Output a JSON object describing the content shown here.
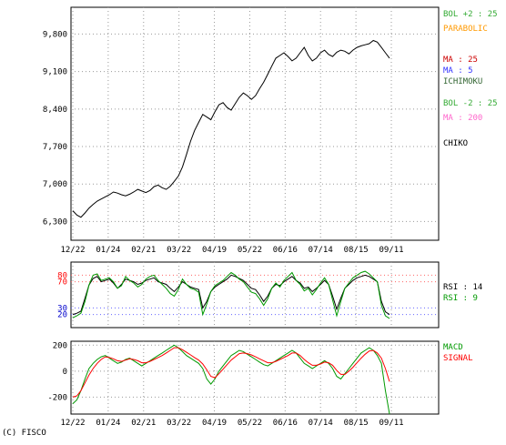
{
  "copyright": "(C) FISCO",
  "colors": {
    "close": "#000000",
    "candle_up": "#ff0000",
    "candle_down": "#000099",
    "bol_upper": "#33aa33",
    "bol_lower": "#33aa33",
    "parabolic": "#ff9900",
    "ma25": "#cc0000",
    "ma5": "#3333ff",
    "ma200": "#ff66cc",
    "ichimoku": "#999999",
    "chiko": "#000000",
    "rsi14": "#000000",
    "rsi9": "#009900",
    "macd": "#009900",
    "signal": "#ff0000",
    "grid": "#999999",
    "ref_high": "#ff6666",
    "ref_low": "#6666ff"
  },
  "chart_data": [
    {
      "type": "line",
      "panel": "price",
      "x_labels": [
        "12/22",
        "01/24",
        "02/21",
        "03/22",
        "04/19",
        "05/22",
        "06/16",
        "07/14",
        "08/15",
        "09/11"
      ],
      "y_ticks": [
        "9,800",
        "9,100",
        "8,400",
        "7,700",
        "7,000",
        "6,300"
      ],
      "y_tick_values": [
        9800,
        9100,
        8400,
        7700,
        7000,
        6300
      ],
      "ylim": [
        5950,
        10300
      ],
      "legend": [
        {
          "label": "BOL +2 : 25",
          "color": "#33aa33"
        },
        {
          "label": "PARABOLIC",
          "color": "#ff9900"
        },
        {
          "label": "MA : 25",
          "color": "#cc0000"
        },
        {
          "label": "MA : 5",
          "color": "#3333ff"
        },
        {
          "label": "ICHIMOKU",
          "color": "#336633"
        },
        {
          "label": "BOL -2 : 25",
          "color": "#33aa33"
        },
        {
          "label": "MA : 200",
          "color": "#ff66cc"
        },
        {
          "label": "CHIKO",
          "color": "#000000"
        }
      ],
      "series": [
        {
          "name": "Close",
          "values": [
            6500,
            6420,
            6380,
            6460,
            6550,
            6620,
            6680,
            6720,
            6760,
            6800,
            6850,
            6830,
            6800,
            6780,
            6810,
            6850,
            6900,
            6870,
            6840,
            6880,
            6950,
            6980,
            6930,
            6900,
            6960,
            7050,
            7150,
            7320,
            7550,
            7800,
            8000,
            8150,
            8300,
            8250,
            8200,
            8350,
            8480,
            8520,
            8430,
            8380,
            8500,
            8620,
            8700,
            8650,
            8580,
            8650,
            8780,
            8900,
            9050,
            9200,
            9350,
            9400,
            9450,
            9380,
            9300,
            9350,
            9450,
            9550,
            9400,
            9300,
            9350,
            9450,
            9500,
            9420,
            9380,
            9460,
            9500,
            9480,
            9430,
            9500,
            9550,
            9580,
            9600,
            9620,
            9680,
            9650,
            9550,
            9450,
            9350
          ]
        }
      ]
    },
    {
      "type": "line",
      "panel": "rsi",
      "y_ticks": [
        "80",
        "70",
        "30",
        "20"
      ],
      "y_tick_values": [
        80,
        70,
        30,
        20
      ],
      "ylim": [
        0,
        100
      ],
      "legend": [
        {
          "label": "RSI : 14",
          "color": "#000000"
        },
        {
          "label": "RSI : 9",
          "color": "#009900"
        }
      ],
      "series": [
        {
          "name": "RSI 14",
          "values": [
            20,
            22,
            25,
            45,
            65,
            75,
            78,
            70,
            72,
            74,
            68,
            60,
            66,
            74,
            72,
            70,
            66,
            68,
            72,
            74,
            76,
            70,
            68,
            66,
            60,
            55,
            62,
            70,
            66,
            62,
            60,
            58,
            30,
            40,
            55,
            62,
            66,
            70,
            74,
            80,
            78,
            75,
            72,
            66,
            60,
            58,
            50,
            40,
            48,
            60,
            66,
            64,
            70,
            74,
            78,
            72,
            68,
            60,
            62,
            55,
            60,
            66,
            72,
            66,
            48,
            28,
            45,
            60,
            66,
            72,
            76,
            78,
            80,
            78,
            74,
            70,
            40,
            24,
            20
          ]
        },
        {
          "name": "RSI 9",
          "values": [
            15,
            18,
            22,
            40,
            65,
            80,
            82,
            72,
            74,
            76,
            70,
            60,
            64,
            78,
            72,
            68,
            62,
            66,
            74,
            78,
            80,
            72,
            66,
            60,
            52,
            48,
            58,
            74,
            66,
            60,
            58,
            54,
            20,
            36,
            55,
            64,
            68,
            72,
            78,
            84,
            80,
            74,
            70,
            62,
            54,
            52,
            44,
            34,
            44,
            60,
            68,
            62,
            72,
            78,
            84,
            72,
            66,
            56,
            60,
            50,
            58,
            68,
            76,
            66,
            42,
            18,
            40,
            60,
            68,
            76,
            80,
            84,
            86,
            82,
            76,
            70,
            34,
            18,
            14
          ]
        }
      ]
    },
    {
      "type": "line",
      "panel": "macd",
      "y_ticks": [
        "200",
        "0",
        "-200"
      ],
      "y_tick_values": [
        200,
        0,
        -200
      ],
      "ylim": [
        -330,
        230
      ],
      "legend": [
        {
          "label": "MACD",
          "color": "#009900"
        },
        {
          "label": "SIGNAL",
          "color": "#ff0000"
        }
      ],
      "series": [
        {
          "name": "MACD",
          "values": [
            -250,
            -220,
            -150,
            -60,
            20,
            60,
            90,
            110,
            120,
            100,
            80,
            60,
            70,
            90,
            100,
            80,
            60,
            40,
            60,
            80,
            100,
            120,
            140,
            160,
            180,
            200,
            180,
            150,
            120,
            100,
            80,
            60,
            20,
            -60,
            -100,
            -60,
            0,
            40,
            80,
            120,
            140,
            160,
            150,
            130,
            110,
            90,
            70,
            50,
            40,
            60,
            80,
            100,
            120,
            140,
            160,
            140,
            100,
            60,
            40,
            20,
            40,
            60,
            80,
            60,
            20,
            -40,
            -60,
            -20,
            20,
            60,
            100,
            140,
            160,
            180,
            160,
            120,
            60,
            -150,
            -330
          ]
        },
        {
          "name": "SIGNAL",
          "values": [
            -200,
            -190,
            -150,
            -90,
            -30,
            20,
            60,
            90,
            110,
            105,
            95,
            80,
            75,
            85,
            95,
            90,
            80,
            65,
            65,
            75,
            90,
            105,
            120,
            140,
            160,
            180,
            180,
            165,
            145,
            125,
            105,
            85,
            55,
            10,
            -40,
            -50,
            -20,
            15,
            50,
            85,
            110,
            135,
            140,
            135,
            125,
            110,
            95,
            80,
            65,
            65,
            75,
            90,
            105,
            120,
            140,
            140,
            120,
            90,
            65,
            45,
            45,
            55,
            70,
            65,
            45,
            5,
            -25,
            -25,
            0,
            30,
            65,
            100,
            130,
            155,
            160,
            140,
            100,
            20,
            -80
          ]
        }
      ]
    }
  ]
}
